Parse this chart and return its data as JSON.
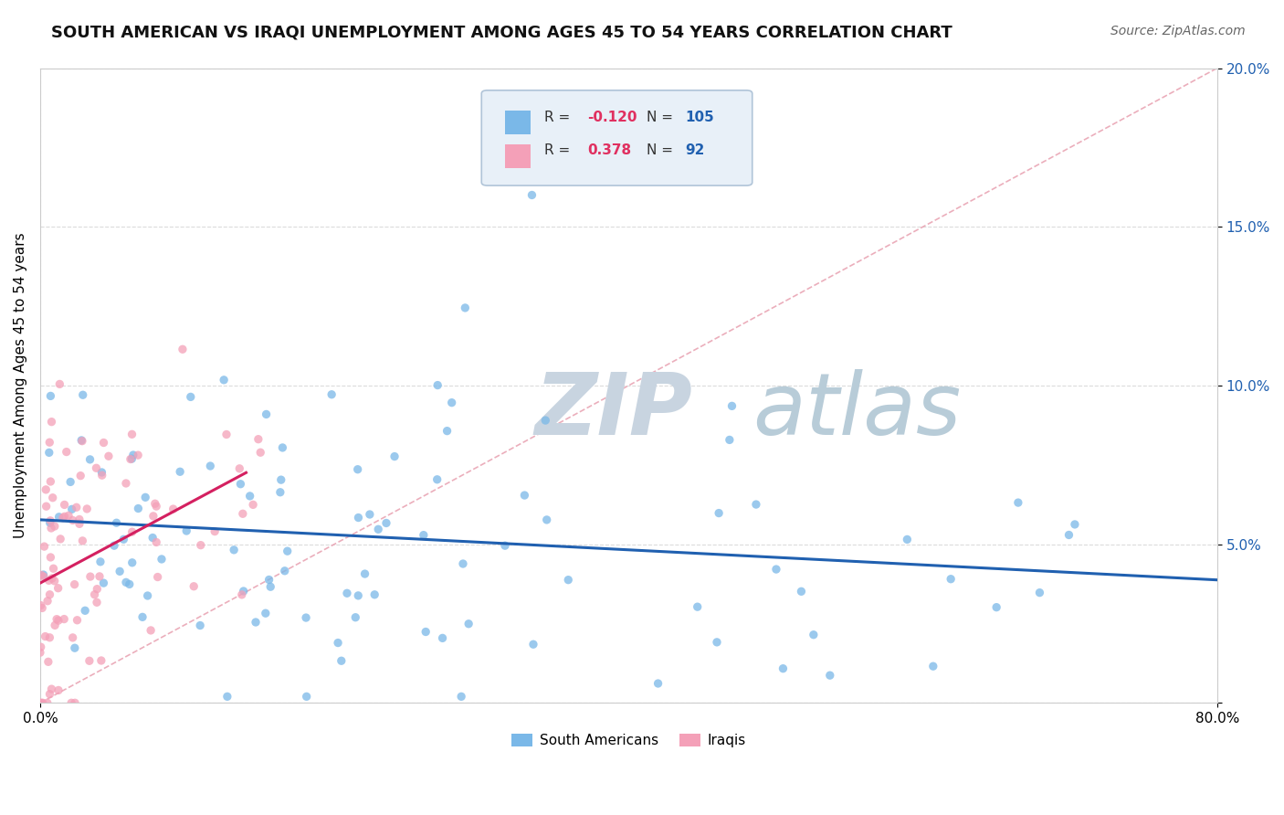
{
  "title": "SOUTH AMERICAN VS IRAQI UNEMPLOYMENT AMONG AGES 45 TO 54 YEARS CORRELATION CHART",
  "source": "Source: ZipAtlas.com",
  "ylabel": "Unemployment Among Ages 45 to 54 years",
  "xlim": [
    0.0,
    80.0
  ],
  "ylim": [
    0.0,
    20.0
  ],
  "yticks": [
    0.0,
    5.0,
    10.0,
    15.0,
    20.0
  ],
  "ytick_labels": [
    "",
    "5.0%",
    "10.0%",
    "15.0%",
    "20.0%"
  ],
  "south_american_color": "#7ab8e8",
  "iraqi_color": "#f4a0b8",
  "trend_sa_color": "#2060b0",
  "trend_iq_color": "#d42060",
  "diagonal_color": "#e8a0b0",
  "watermark_zip_color": "#c8d4e0",
  "watermark_atlas_color": "#b8ccd8",
  "sa_R": -0.12,
  "sa_N": 105,
  "iq_R": 0.378,
  "iq_N": 92,
  "background_color": "#ffffff",
  "legend_box_color": "#e8f0f8",
  "legend_border_color": "#b0c4d8"
}
